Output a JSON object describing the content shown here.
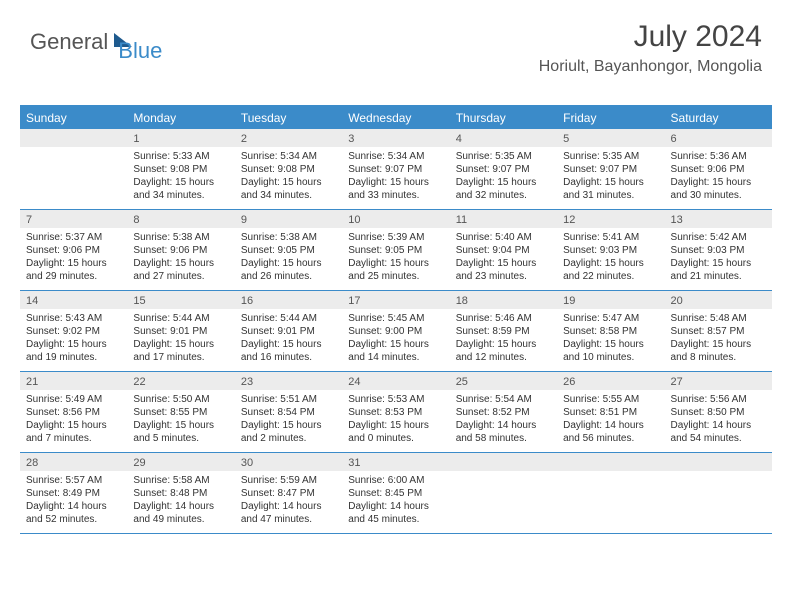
{
  "logo": {
    "part1": "General",
    "part2": "Blue"
  },
  "title": "July 2024",
  "location": "Horiult, Bayanhongor, Mongolia",
  "colors": {
    "header": "#3b8bc9",
    "daynum_bg": "#ececec",
    "text": "#333333"
  },
  "daysOfWeek": [
    "Sunday",
    "Monday",
    "Tuesday",
    "Wednesday",
    "Thursday",
    "Friday",
    "Saturday"
  ],
  "weeks": [
    [
      {
        "n": "",
        "sr": "",
        "ss": "",
        "dl1": "",
        "dl2": ""
      },
      {
        "n": "1",
        "sr": "Sunrise: 5:33 AM",
        "ss": "Sunset: 9:08 PM",
        "dl1": "Daylight: 15 hours",
        "dl2": "and 34 minutes."
      },
      {
        "n": "2",
        "sr": "Sunrise: 5:34 AM",
        "ss": "Sunset: 9:08 PM",
        "dl1": "Daylight: 15 hours",
        "dl2": "and 34 minutes."
      },
      {
        "n": "3",
        "sr": "Sunrise: 5:34 AM",
        "ss": "Sunset: 9:07 PM",
        "dl1": "Daylight: 15 hours",
        "dl2": "and 33 minutes."
      },
      {
        "n": "4",
        "sr": "Sunrise: 5:35 AM",
        "ss": "Sunset: 9:07 PM",
        "dl1": "Daylight: 15 hours",
        "dl2": "and 32 minutes."
      },
      {
        "n": "5",
        "sr": "Sunrise: 5:35 AM",
        "ss": "Sunset: 9:07 PM",
        "dl1": "Daylight: 15 hours",
        "dl2": "and 31 minutes."
      },
      {
        "n": "6",
        "sr": "Sunrise: 5:36 AM",
        "ss": "Sunset: 9:06 PM",
        "dl1": "Daylight: 15 hours",
        "dl2": "and 30 minutes."
      }
    ],
    [
      {
        "n": "7",
        "sr": "Sunrise: 5:37 AM",
        "ss": "Sunset: 9:06 PM",
        "dl1": "Daylight: 15 hours",
        "dl2": "and 29 minutes."
      },
      {
        "n": "8",
        "sr": "Sunrise: 5:38 AM",
        "ss": "Sunset: 9:06 PM",
        "dl1": "Daylight: 15 hours",
        "dl2": "and 27 minutes."
      },
      {
        "n": "9",
        "sr": "Sunrise: 5:38 AM",
        "ss": "Sunset: 9:05 PM",
        "dl1": "Daylight: 15 hours",
        "dl2": "and 26 minutes."
      },
      {
        "n": "10",
        "sr": "Sunrise: 5:39 AM",
        "ss": "Sunset: 9:05 PM",
        "dl1": "Daylight: 15 hours",
        "dl2": "and 25 minutes."
      },
      {
        "n": "11",
        "sr": "Sunrise: 5:40 AM",
        "ss": "Sunset: 9:04 PM",
        "dl1": "Daylight: 15 hours",
        "dl2": "and 23 minutes."
      },
      {
        "n": "12",
        "sr": "Sunrise: 5:41 AM",
        "ss": "Sunset: 9:03 PM",
        "dl1": "Daylight: 15 hours",
        "dl2": "and 22 minutes."
      },
      {
        "n": "13",
        "sr": "Sunrise: 5:42 AM",
        "ss": "Sunset: 9:03 PM",
        "dl1": "Daylight: 15 hours",
        "dl2": "and 21 minutes."
      }
    ],
    [
      {
        "n": "14",
        "sr": "Sunrise: 5:43 AM",
        "ss": "Sunset: 9:02 PM",
        "dl1": "Daylight: 15 hours",
        "dl2": "and 19 minutes."
      },
      {
        "n": "15",
        "sr": "Sunrise: 5:44 AM",
        "ss": "Sunset: 9:01 PM",
        "dl1": "Daylight: 15 hours",
        "dl2": "and 17 minutes."
      },
      {
        "n": "16",
        "sr": "Sunrise: 5:44 AM",
        "ss": "Sunset: 9:01 PM",
        "dl1": "Daylight: 15 hours",
        "dl2": "and 16 minutes."
      },
      {
        "n": "17",
        "sr": "Sunrise: 5:45 AM",
        "ss": "Sunset: 9:00 PM",
        "dl1": "Daylight: 15 hours",
        "dl2": "and 14 minutes."
      },
      {
        "n": "18",
        "sr": "Sunrise: 5:46 AM",
        "ss": "Sunset: 8:59 PM",
        "dl1": "Daylight: 15 hours",
        "dl2": "and 12 minutes."
      },
      {
        "n": "19",
        "sr": "Sunrise: 5:47 AM",
        "ss": "Sunset: 8:58 PM",
        "dl1": "Daylight: 15 hours",
        "dl2": "and 10 minutes."
      },
      {
        "n": "20",
        "sr": "Sunrise: 5:48 AM",
        "ss": "Sunset: 8:57 PM",
        "dl1": "Daylight: 15 hours",
        "dl2": "and 8 minutes."
      }
    ],
    [
      {
        "n": "21",
        "sr": "Sunrise: 5:49 AM",
        "ss": "Sunset: 8:56 PM",
        "dl1": "Daylight: 15 hours",
        "dl2": "and 7 minutes."
      },
      {
        "n": "22",
        "sr": "Sunrise: 5:50 AM",
        "ss": "Sunset: 8:55 PM",
        "dl1": "Daylight: 15 hours",
        "dl2": "and 5 minutes."
      },
      {
        "n": "23",
        "sr": "Sunrise: 5:51 AM",
        "ss": "Sunset: 8:54 PM",
        "dl1": "Daylight: 15 hours",
        "dl2": "and 2 minutes."
      },
      {
        "n": "24",
        "sr": "Sunrise: 5:53 AM",
        "ss": "Sunset: 8:53 PM",
        "dl1": "Daylight: 15 hours",
        "dl2": "and 0 minutes."
      },
      {
        "n": "25",
        "sr": "Sunrise: 5:54 AM",
        "ss": "Sunset: 8:52 PM",
        "dl1": "Daylight: 14 hours",
        "dl2": "and 58 minutes."
      },
      {
        "n": "26",
        "sr": "Sunrise: 5:55 AM",
        "ss": "Sunset: 8:51 PM",
        "dl1": "Daylight: 14 hours",
        "dl2": "and 56 minutes."
      },
      {
        "n": "27",
        "sr": "Sunrise: 5:56 AM",
        "ss": "Sunset: 8:50 PM",
        "dl1": "Daylight: 14 hours",
        "dl2": "and 54 minutes."
      }
    ],
    [
      {
        "n": "28",
        "sr": "Sunrise: 5:57 AM",
        "ss": "Sunset: 8:49 PM",
        "dl1": "Daylight: 14 hours",
        "dl2": "and 52 minutes."
      },
      {
        "n": "29",
        "sr": "Sunrise: 5:58 AM",
        "ss": "Sunset: 8:48 PM",
        "dl1": "Daylight: 14 hours",
        "dl2": "and 49 minutes."
      },
      {
        "n": "30",
        "sr": "Sunrise: 5:59 AM",
        "ss": "Sunset: 8:47 PM",
        "dl1": "Daylight: 14 hours",
        "dl2": "and 47 minutes."
      },
      {
        "n": "31",
        "sr": "Sunrise: 6:00 AM",
        "ss": "Sunset: 8:45 PM",
        "dl1": "Daylight: 14 hours",
        "dl2": "and 45 minutes."
      },
      {
        "n": "",
        "sr": "",
        "ss": "",
        "dl1": "",
        "dl2": ""
      },
      {
        "n": "",
        "sr": "",
        "ss": "",
        "dl1": "",
        "dl2": ""
      },
      {
        "n": "",
        "sr": "",
        "ss": "",
        "dl1": "",
        "dl2": ""
      }
    ]
  ]
}
